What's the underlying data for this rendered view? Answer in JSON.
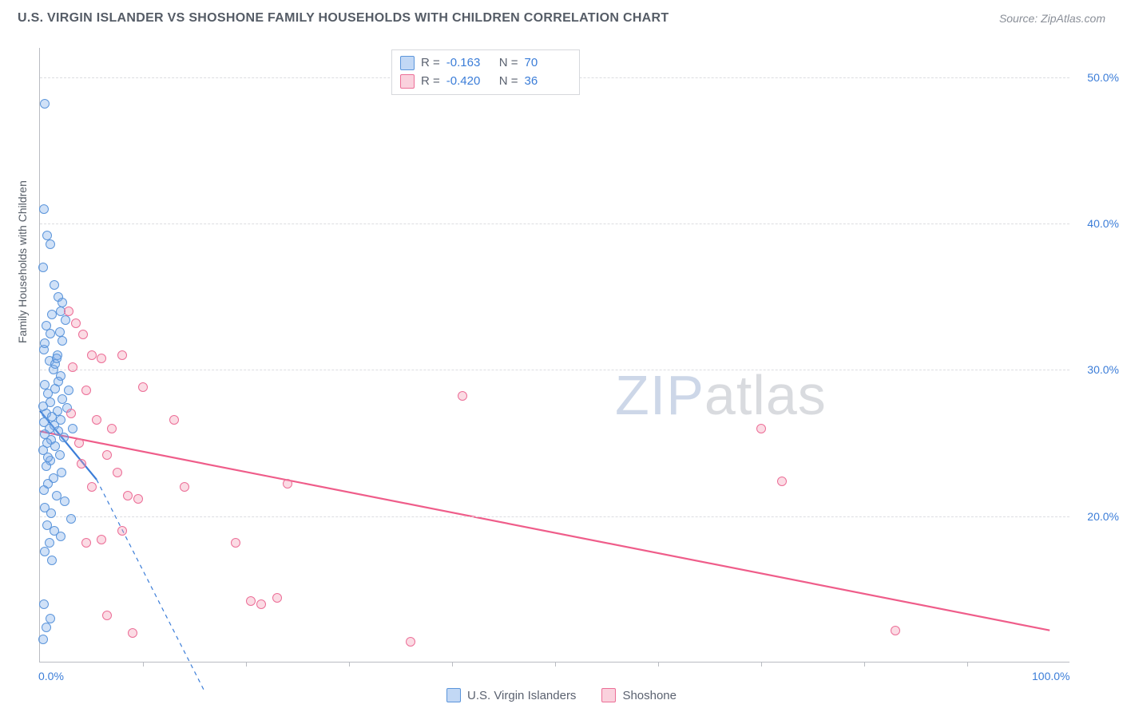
{
  "header": {
    "title": "U.S. VIRGIN ISLANDER VS SHOSHONE FAMILY HOUSEHOLDS WITH CHILDREN CORRELATION CHART",
    "source": "Source: ZipAtlas.com"
  },
  "watermark": {
    "part1": "ZIP",
    "part2": "atlas"
  },
  "chart": {
    "type": "scatter",
    "y_axis_label": "Family Households with Children",
    "background_color": "#ffffff",
    "grid_color": "#dcdde1",
    "axis_color": "#b9bcc2",
    "xlim": [
      0,
      100
    ],
    "ylim": [
      10,
      52
    ],
    "y_ticks": [
      {
        "v": 20,
        "label": "20.0%"
      },
      {
        "v": 30,
        "label": "30.0%"
      },
      {
        "v": 40,
        "label": "40.0%"
      },
      {
        "v": 50,
        "label": "50.0%"
      }
    ],
    "x_ticks": [
      {
        "v": 0,
        "label": "0.0%"
      },
      {
        "v": 100,
        "label": "100.0%"
      }
    ],
    "x_minor_ticks": [
      10,
      20,
      30,
      40,
      50,
      60,
      70,
      80,
      90
    ],
    "series": [
      {
        "name": "U.S. Virgin Islanders",
        "color_fill": "rgba(120,169,232,0.35)",
        "color_stroke": "#5b95db",
        "marker_size": 12,
        "R": "-0.163",
        "N": "70",
        "trend": {
          "x1": 0,
          "y1": 27.2,
          "x2": 5.5,
          "y2": 22.5,
          "extend_x": 16.0,
          "extend_y": 8.0,
          "color": "#3b7dd8",
          "width": 2.2
        },
        "points": [
          [
            0.5,
            48.2
          ],
          [
            0.4,
            41.0
          ],
          [
            0.7,
            39.2
          ],
          [
            1.0,
            38.6
          ],
          [
            0.3,
            37.0
          ],
          [
            1.4,
            35.8
          ],
          [
            1.8,
            35.0
          ],
          [
            2.2,
            34.6
          ],
          [
            2.0,
            34.0
          ],
          [
            1.2,
            33.8
          ],
          [
            2.5,
            33.4
          ],
          [
            0.6,
            33.0
          ],
          [
            1.0,
            32.5
          ],
          [
            2.2,
            32.0
          ],
          [
            0.4,
            31.4
          ],
          [
            1.7,
            31.0
          ],
          [
            0.9,
            30.6
          ],
          [
            1.3,
            30.0
          ],
          [
            2.0,
            29.6
          ],
          [
            0.5,
            29.0
          ],
          [
            1.5,
            28.7
          ],
          [
            0.8,
            28.4
          ],
          [
            2.2,
            28.0
          ],
          [
            1.0,
            27.8
          ],
          [
            0.3,
            27.5
          ],
          [
            1.7,
            27.2
          ],
          [
            0.6,
            27.0
          ],
          [
            1.2,
            26.8
          ],
          [
            2.0,
            26.6
          ],
          [
            0.4,
            26.4
          ],
          [
            1.4,
            26.2
          ],
          [
            0.9,
            26.0
          ],
          [
            1.8,
            25.8
          ],
          [
            0.5,
            25.6
          ],
          [
            2.3,
            25.4
          ],
          [
            1.1,
            25.2
          ],
          [
            0.7,
            25.0
          ],
          [
            1.5,
            24.8
          ],
          [
            0.3,
            24.5
          ],
          [
            1.9,
            24.2
          ],
          [
            1.0,
            23.8
          ],
          [
            0.6,
            23.4
          ],
          [
            2.1,
            23.0
          ],
          [
            1.3,
            22.6
          ],
          [
            0.8,
            22.2
          ],
          [
            0.4,
            21.8
          ],
          [
            1.6,
            21.4
          ],
          [
            2.4,
            21.0
          ],
          [
            0.5,
            20.6
          ],
          [
            1.1,
            20.2
          ],
          [
            3.0,
            19.8
          ],
          [
            0.7,
            19.4
          ],
          [
            1.4,
            19.0
          ],
          [
            2.0,
            18.6
          ],
          [
            0.9,
            18.2
          ],
          [
            0.5,
            17.6
          ],
          [
            1.2,
            17.0
          ],
          [
            0.4,
            14.0
          ],
          [
            1.0,
            13.0
          ],
          [
            0.6,
            12.4
          ],
          [
            0.3,
            11.6
          ],
          [
            1.5,
            30.4
          ],
          [
            2.6,
            27.4
          ],
          [
            3.2,
            26.0
          ],
          [
            1.8,
            29.2
          ],
          [
            0.8,
            24.0
          ],
          [
            1.6,
            30.8
          ],
          [
            2.8,
            28.6
          ],
          [
            0.5,
            31.8
          ],
          [
            1.9,
            32.6
          ]
        ]
      },
      {
        "name": "Shoshone",
        "color_fill": "rgba(244,153,179,0.35)",
        "color_stroke": "#ec6e97",
        "marker_size": 12,
        "R": "-0.420",
        "N": "36",
        "trend": {
          "x1": 0,
          "y1": 25.8,
          "x2": 98,
          "y2": 12.2,
          "color": "#ef5d8a",
          "width": 2.2
        },
        "points": [
          [
            2.8,
            34.0
          ],
          [
            3.5,
            33.2
          ],
          [
            4.2,
            32.4
          ],
          [
            5.0,
            31.0
          ],
          [
            6.0,
            30.8
          ],
          [
            8.0,
            31.0
          ],
          [
            10.0,
            28.8
          ],
          [
            4.5,
            28.6
          ],
          [
            3.0,
            27.0
          ],
          [
            5.5,
            26.6
          ],
          [
            7.0,
            26.0
          ],
          [
            13.0,
            26.6
          ],
          [
            3.8,
            25.0
          ],
          [
            6.5,
            24.2
          ],
          [
            4.0,
            23.6
          ],
          [
            7.5,
            23.0
          ],
          [
            5.0,
            22.0
          ],
          [
            8.5,
            21.4
          ],
          [
            9.5,
            21.2
          ],
          [
            14.0,
            22.0
          ],
          [
            24.0,
            22.2
          ],
          [
            4.5,
            18.2
          ],
          [
            6.0,
            18.4
          ],
          [
            19.0,
            18.2
          ],
          [
            20.5,
            14.2
          ],
          [
            21.5,
            14.0
          ],
          [
            23.0,
            14.4
          ],
          [
            36.0,
            11.4
          ],
          [
            9.0,
            12.0
          ],
          [
            6.5,
            13.2
          ],
          [
            8.0,
            19.0
          ],
          [
            41.0,
            28.2
          ],
          [
            70.0,
            26.0
          ],
          [
            72.0,
            22.4
          ],
          [
            83.0,
            12.2
          ],
          [
            3.2,
            30.2
          ]
        ]
      }
    ]
  },
  "legend_stats": {
    "rows": [
      {
        "swatch": "blue",
        "R_label": "R =",
        "R": "-0.163",
        "N_label": "N =",
        "N": "70"
      },
      {
        "swatch": "pink",
        "R_label": "R =",
        "R": "-0.420",
        "N_label": "N =",
        "N": "36"
      }
    ]
  },
  "bottom_legend": {
    "items": [
      {
        "swatch": "blue",
        "label": "U.S. Virgin Islanders"
      },
      {
        "swatch": "pink",
        "label": "Shoshone"
      }
    ]
  }
}
